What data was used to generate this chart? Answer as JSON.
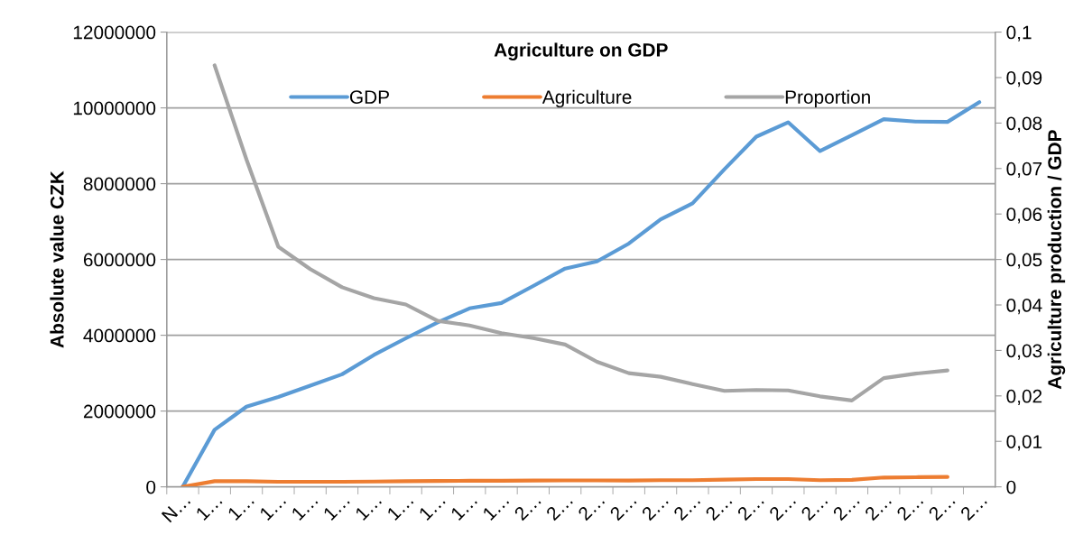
{
  "chart_data": {
    "type": "line",
    "title": "Agriculture on GDP",
    "ylabel": "Absolute value CZK",
    "y2label": "Agriculture production / GDP",
    "categories": [
      "N…",
      "1…",
      "1…",
      "1…",
      "1…",
      "1…",
      "1…",
      "1…",
      "1…",
      "1…",
      "1…",
      "2…",
      "2…",
      "2…",
      "2…",
      "2…",
      "2…",
      "2…",
      "2…",
      "2…",
      "2…",
      "2…",
      "2…",
      "2…",
      "2…",
      "2…"
    ],
    "series": [
      {
        "name": "GDP",
        "color": "#5b9bd5",
        "values": [
          0,
          1506000,
          2117000,
          2370000,
          2670000,
          2970000,
          3480000,
          3920000,
          4340000,
          4710000,
          4850000,
          5300000,
          5760000,
          5950000,
          6420000,
          7060000,
          7480000,
          8380000,
          9240000,
          9620000,
          8860000,
          9280000,
          9700000,
          9640000,
          9630000,
          10150000
        ]
      },
      {
        "name": "Agriculture",
        "color": "#ed7d31",
        "values": [
          0,
          150000,
          150000,
          135000,
          135000,
          135000,
          140000,
          150000,
          155000,
          160000,
          160000,
          165000,
          170000,
          170000,
          165000,
          175000,
          175000,
          190000,
          206000,
          206000,
          175000,
          183000,
          246000,
          254000,
          262000,
          null
        ]
      },
      {
        "name": "Proportion",
        "color": "#a5a5a5",
        "axis": "y2",
        "values": [
          null,
          0.0927,
          0.072,
          0.0528,
          0.0479,
          0.0439,
          0.0415,
          0.0401,
          0.0365,
          0.0355,
          0.0338,
          0.0327,
          0.0313,
          0.0275,
          0.025,
          0.0242,
          0.0226,
          0.0211,
          0.0213,
          0.0212,
          0.0199,
          0.019,
          0.0239,
          0.0249,
          0.0256,
          null
        ]
      }
    ],
    "ylim": [
      0,
      12000000
    ],
    "yticks": [
      0,
      2000000,
      4000000,
      6000000,
      8000000,
      10000000,
      12000000
    ],
    "y2lim": [
      0,
      0.1
    ],
    "y2ticks": [
      0,
      {
        "value": 0.01,
        "label": "0,01"
      },
      {
        "value": 0.02,
        "label": "0,02"
      },
      {
        "value": 0.03,
        "label": "0,03"
      },
      {
        "value": 0.04,
        "label": "0,04"
      },
      {
        "value": 0.05,
        "label": "0,05"
      },
      {
        "value": 0.06,
        "label": "0,06"
      },
      {
        "value": 0.07,
        "label": "0,07"
      },
      {
        "value": 0.08,
        "label": "0,08"
      },
      {
        "value": 0.09,
        "label": "0,09"
      },
      {
        "value": 0.1,
        "label": "0,1"
      }
    ],
    "grid": "y",
    "legend": "top",
    "marker": "none",
    "line_style": "solid"
  }
}
